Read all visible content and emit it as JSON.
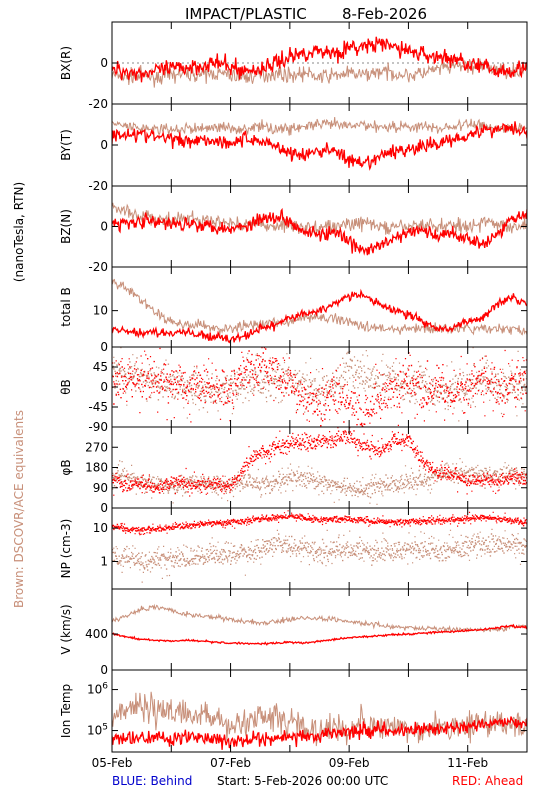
{
  "title": "IMPACT/PLASTIC",
  "date": "8-Feb-2026",
  "side_label_units": "(nanoTesla, RTN)",
  "side_label_brown": "Brown: DSCOVR/ACE equivalents",
  "footer": {
    "behind": "BLUE: Behind",
    "start": "Start:  5-Feb-2026 00:00 UTC",
    "ahead": "RED: Ahead"
  },
  "colors": {
    "ahead": "#ff0000",
    "brown": "#c8907a",
    "behind": "#0000cc",
    "axis": "#000000"
  },
  "chart_data": [
    {
      "type": "line",
      "panel": "bx",
      "ylabel": "BX(R)",
      "ylim": [
        -20,
        20
      ],
      "ytick_labels": [
        "0",
        "-20"
      ],
      "yticks": [
        0,
        -20
      ],
      "zero_line": true,
      "x": [
        0,
        0.25,
        0.5,
        0.75,
        1,
        1.25,
        1.5,
        1.75,
        2,
        2.25,
        2.5,
        2.75,
        3,
        3.25,
        3.5,
        3.75,
        4,
        4.25,
        4.5,
        4.75,
        5,
        5.25,
        5.5,
        5.75,
        6,
        6.25,
        6.5,
        6.75,
        7
      ],
      "series": [
        {
          "name": "Ahead",
          "color": "red",
          "noise": 3.0,
          "values": [
            -3,
            -4,
            -5,
            -4,
            -3,
            -2,
            -1,
            0,
            -2,
            -4,
            -3,
            0,
            3,
            5,
            6,
            5,
            7,
            8,
            9,
            8,
            6,
            4,
            3,
            2,
            0,
            -2,
            -4,
            -3,
            -2
          ]
        },
        {
          "name": "DSCOVR/ACE",
          "color": "brown",
          "noise": 2.5,
          "values": [
            -6,
            -7,
            -6,
            -7,
            -6,
            -5,
            -6,
            -5,
            -6,
            -7,
            -6,
            -5,
            -6,
            -5,
            -7,
            -6,
            -5,
            -6,
            -4,
            -5,
            -6,
            -5,
            -3,
            -2,
            -1,
            -2,
            -3,
            -4,
            -3
          ]
        }
      ]
    },
    {
      "type": "line",
      "panel": "by",
      "ylabel": "BY(T)",
      "ylim": [
        -20,
        20
      ],
      "ytick_labels": [
        "0",
        "-20"
      ],
      "yticks": [
        0,
        -20
      ],
      "zero_line": false,
      "x": [
        0,
        0.25,
        0.5,
        0.75,
        1,
        1.25,
        1.5,
        1.75,
        2,
        2.25,
        2.5,
        2.75,
        3,
        3.25,
        3.5,
        3.75,
        4,
        4.25,
        4.5,
        4.75,
        5,
        5.25,
        5.5,
        5.75,
        6,
        6.25,
        6.5,
        6.75,
        7
      ],
      "series": [
        {
          "name": "Ahead",
          "color": "red",
          "noise": 2.5,
          "values": [
            4,
            6,
            5,
            4,
            3,
            2,
            3,
            2,
            1,
            3,
            2,
            0,
            -4,
            -5,
            -3,
            -2,
            -8,
            -10,
            -6,
            -3,
            -2,
            -1,
            1,
            3,
            5,
            7,
            8,
            9,
            6
          ]
        },
        {
          "name": "DSCOVR/ACE",
          "color": "brown",
          "noise": 2.0,
          "values": [
            10,
            9,
            8,
            8,
            7,
            8,
            8,
            9,
            8,
            8,
            9,
            8,
            8,
            9,
            10,
            10,
            9,
            10,
            9,
            9,
            9,
            9,
            8,
            9,
            10,
            10,
            8,
            8,
            9
          ]
        }
      ]
    },
    {
      "type": "line",
      "panel": "bz",
      "ylabel": "BZ(N)",
      "ylim": [
        -20,
        20
      ],
      "ytick_labels": [
        "0",
        "-20"
      ],
      "yticks": [
        0,
        -20
      ],
      "zero_line": false,
      "x": [
        0,
        0.25,
        0.5,
        0.75,
        1,
        1.25,
        1.5,
        1.75,
        2,
        2.25,
        2.5,
        2.75,
        3,
        3.25,
        3.5,
        3.75,
        4,
        4.25,
        4.5,
        4.75,
        5,
        5.25,
        5.5,
        5.75,
        6,
        6.25,
        6.5,
        6.75,
        7
      ],
      "series": [
        {
          "name": "Ahead",
          "color": "red",
          "noise": 2.5,
          "values": [
            1,
            2,
            3,
            2,
            1,
            2,
            1,
            0,
            -1,
            0,
            4,
            5,
            3,
            -2,
            -4,
            -3,
            -8,
            -12,
            -10,
            -6,
            -3,
            -2,
            -5,
            -3,
            -6,
            -8,
            -4,
            4,
            8
          ]
        },
        {
          "name": "DSCOVR/ACE",
          "color": "brown",
          "noise": 2.5,
          "values": [
            10,
            7,
            5,
            4,
            3,
            4,
            3,
            2,
            2,
            1,
            1,
            0,
            1,
            -1,
            0,
            0,
            1,
            2,
            0,
            -1,
            0,
            1,
            0,
            1,
            0,
            2,
            1,
            0,
            1
          ]
        }
      ]
    },
    {
      "type": "line",
      "panel": "bt",
      "ylabel": "total B",
      "ylim": [
        0,
        22
      ],
      "ytick_labels": [
        "10",
        "0"
      ],
      "yticks": [
        10,
        0
      ],
      "zero_line": false,
      "x": [
        0,
        0.25,
        0.5,
        0.75,
        1,
        1.25,
        1.5,
        1.75,
        2,
        2.25,
        2.5,
        2.75,
        3,
        3.25,
        3.5,
        3.75,
        4,
        4.25,
        4.5,
        4.75,
        5,
        5.25,
        5.5,
        5.75,
        6,
        6.25,
        6.5,
        6.75,
        7
      ],
      "series": [
        {
          "name": "Ahead",
          "color": "red",
          "noise": 0.8,
          "values": [
            5,
            4,
            4,
            4,
            4,
            4,
            3,
            3,
            2,
            3,
            5,
            6,
            8,
            9,
            10,
            12,
            14,
            14,
            12,
            10,
            9,
            7,
            5,
            5,
            7,
            8,
            12,
            14,
            12
          ]
        },
        {
          "name": "DSCOVR/ACE",
          "color": "brown",
          "noise": 1.0,
          "values": [
            18,
            16,
            13,
            9,
            7,
            6,
            6,
            5,
            5,
            6,
            6,
            7,
            7,
            8,
            8,
            8,
            7,
            6,
            5,
            5,
            5,
            5,
            5,
            5,
            5,
            5,
            5,
            5,
            4
          ]
        }
      ]
    },
    {
      "type": "scatter",
      "panel": "theta",
      "ylabel": "θB",
      "ylim": [
        -90,
        90
      ],
      "ytick_labels": [
        "45",
        "0",
        "-45",
        "-90"
      ],
      "yticks": [
        45,
        0,
        -45,
        -90
      ],
      "zero_line": false,
      "x": [
        0,
        0.25,
        0.5,
        0.75,
        1,
        1.25,
        1.5,
        1.75,
        2,
        2.25,
        2.5,
        2.75,
        3,
        3.25,
        3.5,
        3.75,
        4,
        4.25,
        4.5,
        4.75,
        5,
        5.25,
        5.5,
        5.75,
        6,
        6.25,
        6.5,
        6.75,
        7
      ],
      "series": [
        {
          "name": "Ahead",
          "color": "red",
          "noise": 30,
          "values": [
            20,
            15,
            10,
            20,
            10,
            5,
            10,
            0,
            -5,
            40,
            50,
            30,
            10,
            -30,
            -40,
            -10,
            -45,
            -60,
            -20,
            0,
            20,
            -10,
            10,
            -20,
            0,
            20,
            -10,
            10,
            20
          ]
        },
        {
          "name": "DSCOVR/ACE",
          "color": "brown",
          "noise": 25,
          "values": [
            40,
            30,
            20,
            10,
            5,
            10,
            0,
            -10,
            0,
            10,
            20,
            10,
            20,
            0,
            -10,
            10,
            40,
            30,
            10,
            20,
            0,
            10,
            -10,
            0,
            10,
            20,
            10,
            0,
            10
          ]
        }
      ]
    },
    {
      "type": "scatter",
      "panel": "phi",
      "ylabel": "φB",
      "ylim": [
        0,
        360
      ],
      "ytick_labels": [
        "270",
        "180",
        "90",
        "0"
      ],
      "yticks": [
        270,
        180,
        90,
        0
      ],
      "zero_line": false,
      "x": [
        0,
        0.25,
        0.5,
        0.75,
        1,
        1.25,
        1.5,
        1.75,
        2,
        2.25,
        2.5,
        2.75,
        3,
        3.25,
        3.5,
        3.75,
        4,
        4.25,
        4.5,
        4.75,
        5,
        5.25,
        5.5,
        5.75,
        6,
        6.25,
        6.5,
        6.75,
        7
      ],
      "series": [
        {
          "name": "Ahead",
          "color": "red",
          "noise": 20,
          "values": [
            130,
            100,
            110,
            90,
            120,
            110,
            100,
            110,
            90,
            200,
            250,
            270,
            290,
            300,
            300,
            310,
            320,
            280,
            260,
            300,
            310,
            200,
            150,
            160,
            120,
            130,
            120,
            140,
            130
          ]
        },
        {
          "name": "DSCOVR/ACE",
          "color": "brown",
          "noise": 25,
          "values": [
            150,
            140,
            120,
            110,
            100,
            110,
            120,
            100,
            110,
            120,
            110,
            120,
            140,
            130,
            120,
            100,
            90,
            80,
            100,
            110,
            120,
            130,
            150,
            160,
            150,
            140,
            150,
            160,
            150
          ]
        }
      ]
    },
    {
      "type": "scatter",
      "panel": "np",
      "ylabel": "NP (cm-3)",
      "ylim": [
        0.15,
        40
      ],
      "log": true,
      "ytick_labels": [
        "10",
        "1"
      ],
      "yticks": [
        10,
        1
      ],
      "zero_line": false,
      "x": [
        0,
        0.25,
        0.5,
        0.75,
        1,
        1.25,
        1.5,
        1.75,
        2,
        2.25,
        2.5,
        2.75,
        3,
        3.25,
        3.5,
        3.75,
        4,
        4.25,
        4.5,
        4.75,
        5,
        5.25,
        5.5,
        5.75,
        6,
        6.25,
        6.5,
        6.75,
        7
      ],
      "series": [
        {
          "name": "Ahead",
          "color": "red",
          "noise": 0.06,
          "values": [
            12,
            10,
            9,
            10,
            11,
            12,
            14,
            15,
            16,
            17,
            20,
            22,
            24,
            20,
            18,
            20,
            19,
            18,
            17,
            16,
            16,
            17,
            18,
            19,
            20,
            22,
            20,
            18,
            14
          ]
        },
        {
          "name": "DSCOVR/ACE",
          "color": "brown",
          "noise": 0.2,
          "values": [
            1.5,
            1.2,
            1.0,
            1.1,
            1.3,
            1.2,
            1.5,
            1.7,
            1.8,
            2.0,
            2.5,
            3.0,
            3.0,
            2.5,
            2.0,
            2.5,
            2.5,
            2.0,
            2.0,
            2.2,
            2.5,
            2.2,
            2.0,
            2.5,
            3.0,
            3.5,
            3.5,
            3.5,
            3.0
          ]
        }
      ]
    },
    {
      "type": "line",
      "panel": "v",
      "ylabel": "V (km/s)",
      "ylim": [
        0,
        900
      ],
      "ytick_labels": [
        "400",
        "0"
      ],
      "yticks": [
        400,
        0
      ],
      "zero_line": false,
      "x": [
        0,
        0.25,
        0.5,
        0.75,
        1,
        1.25,
        1.5,
        1.75,
        2,
        2.25,
        2.5,
        2.75,
        3,
        3.25,
        3.5,
        3.75,
        4,
        4.25,
        4.5,
        4.75,
        5,
        5.25,
        5.5,
        5.75,
        6,
        6.25,
        6.5,
        6.75,
        7
      ],
      "series": [
        {
          "name": "Ahead",
          "color": "red",
          "noise": 8,
          "values": [
            400,
            370,
            340,
            330,
            320,
            330,
            320,
            310,
            300,
            295,
            290,
            300,
            310,
            300,
            320,
            340,
            360,
            370,
            380,
            390,
            400,
            410,
            420,
            430,
            440,
            450,
            470,
            490,
            470
          ]
        },
        {
          "name": "DSCOVR/ACE",
          "color": "brown",
          "noise": 20,
          "values": [
            540,
            600,
            680,
            700,
            660,
            620,
            600,
            580,
            560,
            540,
            520,
            540,
            560,
            580,
            570,
            560,
            540,
            520,
            500,
            480,
            470,
            460,
            450,
            450,
            440,
            440,
            450,
            480,
            500
          ]
        }
      ]
    },
    {
      "type": "line",
      "panel": "temp",
      "ylabel": "Ion Temp",
      "ylim": [
        30000,
        3000000
      ],
      "log": true,
      "ytick_labels": [
        "10^6",
        "10^5"
      ],
      "yticks": [
        1000000,
        100000
      ],
      "zero_line": false,
      "x": [
        0,
        0.25,
        0.5,
        0.75,
        1,
        1.25,
        1.5,
        1.75,
        2,
        2.25,
        2.5,
        2.75,
        3,
        3.25,
        3.5,
        3.75,
        4,
        4.25,
        4.5,
        4.75,
        5,
        5.25,
        5.5,
        5.75,
        6,
        6.25,
        6.5,
        6.75,
        7
      ],
      "series": [
        {
          "name": "Ahead",
          "color": "red",
          "noise": 0.12,
          "values": [
            60000,
            70000,
            65000,
            70000,
            60000,
            70000,
            65000,
            60000,
            50000,
            60000,
            65000,
            60000,
            65000,
            70000,
            80000,
            90000,
            95000,
            100000,
            110000,
            100000,
            110000,
            115000,
            110000,
            120000,
            130000,
            140000,
            150000,
            160000,
            150000
          ]
        },
        {
          "name": "DSCOVR/ACE",
          "color": "brown",
          "noise": 0.25,
          "values": [
            200000,
            300000,
            400000,
            350000,
            300000,
            250000,
            250000,
            200000,
            150000,
            150000,
            200000,
            200000,
            180000,
            120000,
            100000,
            110000,
            120000,
            150000,
            130000,
            120000,
            100000,
            110000,
            120000,
            130000,
            140000,
            150000,
            160000,
            140000,
            130000
          ]
        }
      ]
    }
  ],
  "xaxis": {
    "ticks": [
      0,
      2,
      4,
      6
    ],
    "tick_labels": [
      "05-Feb",
      "07-Feb",
      "09-Feb",
      "11-Feb"
    ],
    "xlim": [
      0,
      7
    ]
  }
}
